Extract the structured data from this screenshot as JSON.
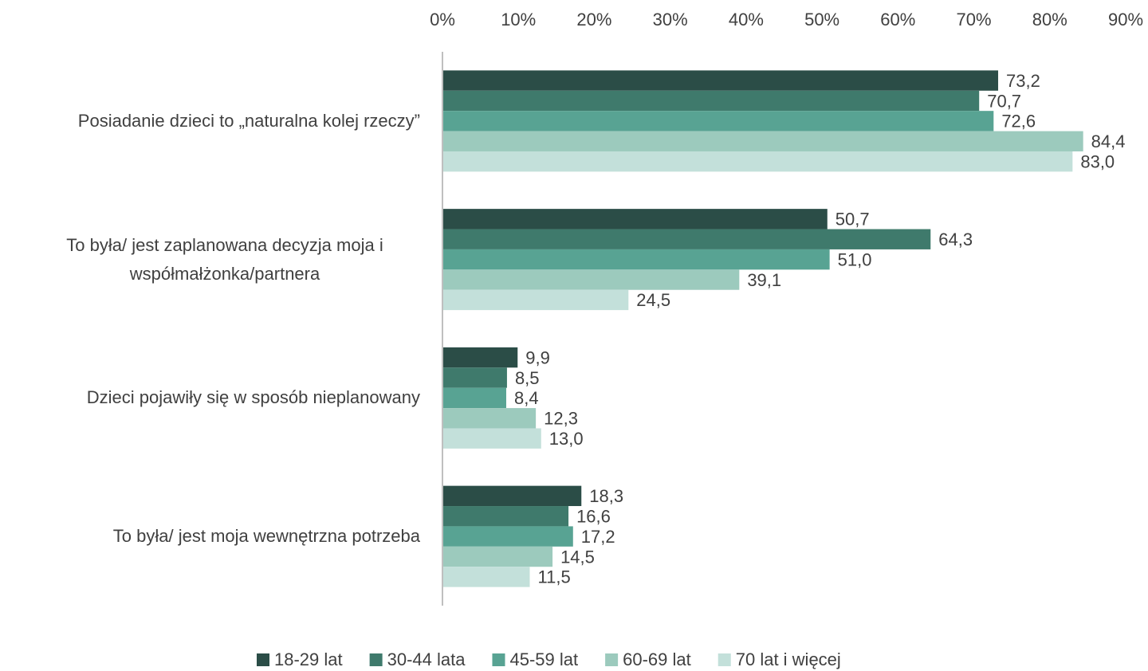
{
  "chart_data": {
    "type": "barh",
    "categories": [
      "Posiadanie dzieci to „naturalna kolej rzeczy”",
      "To była/ jest zaplanowana decyzja moja i współmałżonka/partnera",
      "Dzieci pojawiły się w sposób nieplanowany",
      "To była/ jest moja wewnętrzna potrzeba"
    ],
    "series": [
      {
        "name": "18-29 lat",
        "color": "#2b4d47",
        "values": [
          73.2,
          50.7,
          9.9,
          18.3
        ],
        "value_labels": [
          "73,2",
          "50,7",
          "9,9",
          "18,3"
        ]
      },
      {
        "name": "30-44 lata",
        "color": "#3f7a6c",
        "values": [
          70.7,
          64.3,
          8.5,
          16.6
        ],
        "value_labels": [
          "70,7",
          "64,3",
          "8,5",
          "16,6"
        ]
      },
      {
        "name": "45-59 lat",
        "color": "#58a393",
        "values": [
          72.6,
          51.0,
          8.4,
          17.2
        ],
        "value_labels": [
          "72,6",
          "51,0",
          "8,4",
          "17,2"
        ]
      },
      {
        "name": "60-69 lat",
        "color": "#9ccabd",
        "values": [
          84.4,
          39.1,
          12.3,
          14.5
        ],
        "value_labels": [
          "84,4",
          "39,1",
          "12,3",
          "14,5"
        ]
      },
      {
        "name": "70 lat i więcej",
        "color": "#c3e0da",
        "values": [
          83.0,
          24.5,
          13.0,
          11.5
        ],
        "value_labels": [
          "83,0",
          "24,5",
          "13,0",
          "11,5"
        ]
      }
    ],
    "xlim": [
      0,
      90
    ],
    "xticks": [
      {
        "value": 0,
        "label": "0%"
      },
      {
        "value": 10,
        "label": "10%"
      },
      {
        "value": 20,
        "label": "20%"
      },
      {
        "value": 30,
        "label": "30%"
      },
      {
        "value": 40,
        "label": "40%"
      },
      {
        "value": 50,
        "label": "50%"
      },
      {
        "value": 60,
        "label": "60%"
      },
      {
        "value": 70,
        "label": "70%"
      },
      {
        "value": 80,
        "label": "80%"
      },
      {
        "value": 90,
        "label": "90%"
      }
    ],
    "grid": false,
    "legend": "bottom"
  }
}
